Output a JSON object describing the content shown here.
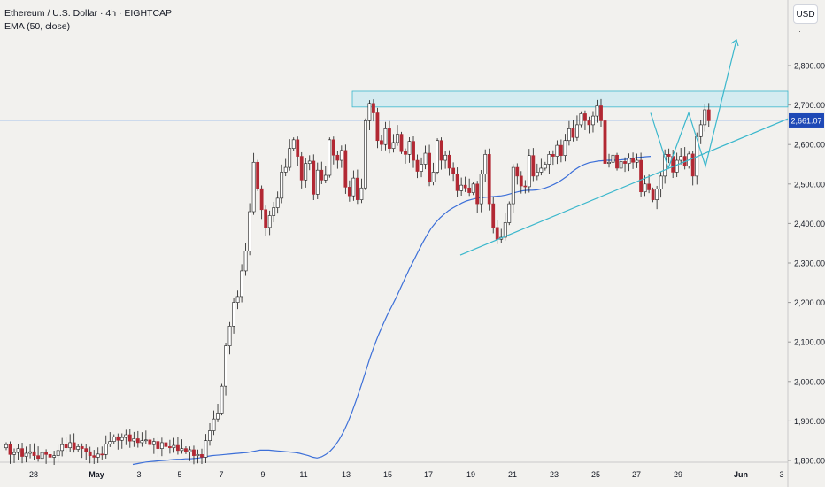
{
  "legend": {
    "symbol_line": "Ethereum / U.S. Dollar · 4h · EIGHTCAP",
    "indicator_line": "EMA (50, close)"
  },
  "currency_button": "USD",
  "price_label": "2,661.07",
  "colors": {
    "background": "#f2f1ee",
    "up_candle": "#ffffff",
    "down_candle": "#b22833",
    "wick": "#1c1c1c",
    "ema": "#3c6fd8",
    "drawing": "#3ab7cc",
    "resistance_fill": "#cfeaf0",
    "price_label_bg": "#1e49b6"
  },
  "chart_data": {
    "type": "candlestick",
    "title": "Ethereum / U.S. Dollar · 4h · EIGHTCAP",
    "ylabel": "USD",
    "ylim": [
      1790,
      2900
    ],
    "y_ticks": [
      "2,800.00",
      "2,700.00",
      "2,600.00",
      "2,500.00",
      "2,400.00",
      "2,300.00",
      "2,200.00",
      "2,100.00",
      "2,000.00",
      "1,900.00",
      "1,800.00"
    ],
    "x_ticks": [
      "28",
      "May",
      "3",
      "5",
      "7",
      "9",
      "11",
      "13",
      "15",
      "17",
      "19",
      "21",
      "23",
      "25",
      "27",
      "29",
      "Jun",
      "3"
    ],
    "last_price": 2661.07,
    "indicator": "EMA (50, close)",
    "closes": [
      1840,
      1815,
      1820,
      1830,
      1810,
      1818,
      1822,
      1812,
      1805,
      1820,
      1815,
      1808,
      1812,
      1825,
      1840,
      1832,
      1845,
      1828,
      1835,
      1830,
      1822,
      1812,
      1808,
      1816,
      1815,
      1842,
      1848,
      1860,
      1851,
      1858,
      1865,
      1849,
      1855,
      1845,
      1850,
      1852,
      1840,
      1848,
      1830,
      1845,
      1835,
      1832,
      1838,
      1825,
      1830,
      1822,
      1827,
      1812,
      1815,
      1808,
      1850,
      1875,
      1905,
      1920,
      1988,
      2090,
      2140,
      2200,
      2215,
      2280,
      2330,
      2430,
      2555,
      2488,
      2435,
      2390,
      2420,
      2440,
      2464,
      2530,
      2542,
      2590,
      2612,
      2570,
      2510,
      2552,
      2558,
      2474,
      2535,
      2510,
      2522,
      2612,
      2573,
      2560,
      2585,
      2492,
      2470,
      2515,
      2460,
      2490,
      2660,
      2704,
      2680,
      2610,
      2600,
      2640,
      2590,
      2605,
      2626,
      2582,
      2575,
      2608,
      2560,
      2532,
      2550,
      2578,
      2505,
      2530,
      2610,
      2560,
      2573,
      2540,
      2525,
      2483,
      2497,
      2490,
      2478,
      2500,
      2450,
      2525,
      2575,
      2450,
      2390,
      2360,
      2365,
      2402,
      2450,
      2542,
      2520,
      2495,
      2493,
      2572,
      2520,
      2530,
      2540,
      2550,
      2575,
      2570,
      2598,
      2572,
      2610,
      2640,
      2618,
      2650,
      2678,
      2660,
      2650,
      2672,
      2698,
      2660,
      2552,
      2555,
      2573,
      2540,
      2557,
      2552,
      2565,
      2555,
      2560,
      2480,
      2500,
      2485,
      2460,
      2487,
      2520,
      2575,
      2570,
      2530,
      2560,
      2570,
      2545,
      2576,
      2520,
      2620,
      2650,
      2688,
      2660
    ],
    "ema_values": [
      1790,
      1792,
      1794,
      1796,
      1797,
      1798,
      1799,
      1800,
      1801,
      1802,
      1803,
      1803,
      1804,
      1804,
      1805,
      1806,
      1808,
      1810,
      1812,
      1813,
      1814,
      1815,
      1816,
      1817,
      1818,
      1819,
      1820,
      1822,
      1824,
      1826,
      1826,
      1826,
      1825,
      1824,
      1823,
      1822,
      1821,
      1820,
      1818,
      1815,
      1812,
      1808,
      1806,
      1809,
      1815,
      1824,
      1836,
      1852,
      1872,
      1896,
      1924,
      1955,
      1988,
      2023,
      2058,
      2090,
      2118,
      2144,
      2168,
      2190,
      2212,
      2236,
      2260,
      2284,
      2306,
      2328,
      2350,
      2370,
      2388,
      2402,
      2414,
      2424,
      2433,
      2440,
      2446,
      2452,
      2457,
      2460,
      2463,
      2465,
      2466,
      2467,
      2468,
      2469,
      2470,
      2472,
      2475,
      2478,
      2481,
      2483,
      2484,
      2484,
      2485,
      2487,
      2490,
      2494,
      2499,
      2505,
      2512,
      2520,
      2530,
      2538,
      2545,
      2550,
      2554,
      2556,
      2558,
      2559,
      2560,
      2560,
      2560,
      2561,
      2562,
      2563,
      2565,
      2567,
      2568,
      2569,
      2570
    ]
  },
  "drawings": {
    "resistance_zone": [
      2695,
      2735
    ],
    "horizontal_line": 2661.07,
    "support_trendline": {
      "from": [
        0.0,
        2320
      ],
      "to": [
        1.0,
        2665
      ]
    },
    "projection_path": [
      2680,
      2540,
      2680,
      2545,
      2865
    ]
  }
}
